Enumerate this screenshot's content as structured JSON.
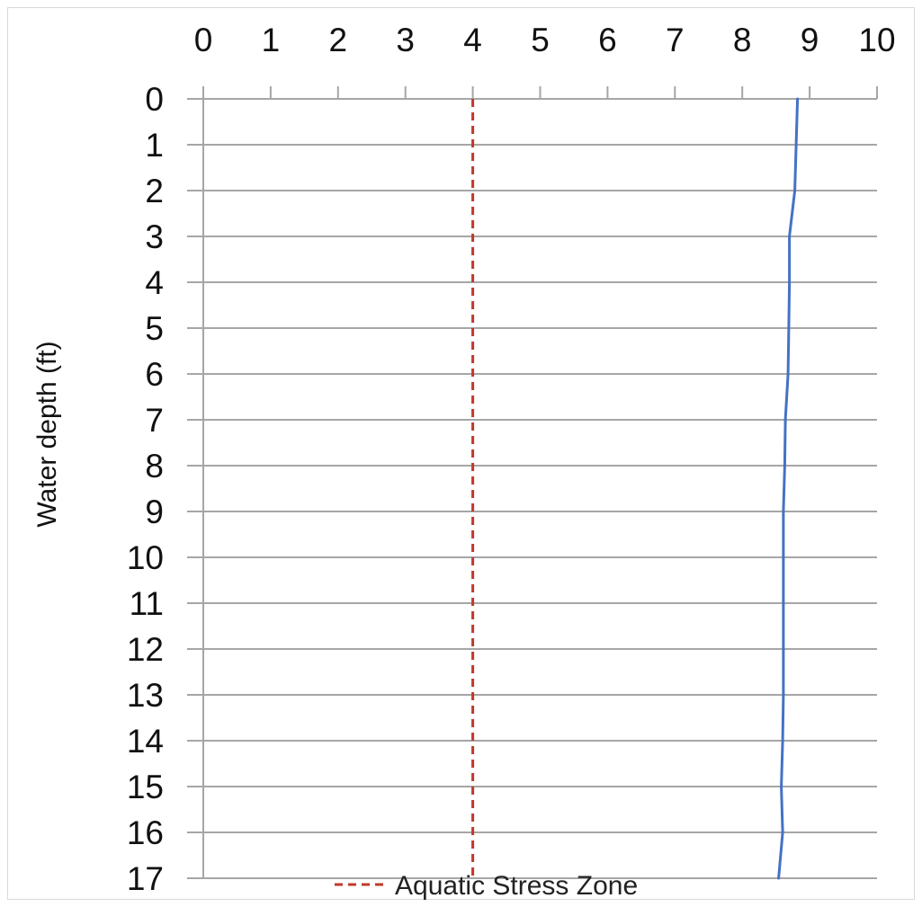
{
  "chart_data": {
    "type": "line",
    "ylabel": "Water depth (ft)",
    "xlabel": "",
    "x_axis_position": "top",
    "y_axis_inverted": true,
    "xlim": [
      0,
      10
    ],
    "ylim": [
      0,
      17
    ],
    "x_ticks": [
      0,
      1,
      2,
      3,
      4,
      5,
      6,
      7,
      8,
      9,
      10
    ],
    "y_ticks": [
      0,
      1,
      2,
      3,
      4,
      5,
      6,
      7,
      8,
      9,
      10,
      11,
      12,
      13,
      14,
      15,
      16,
      17
    ],
    "grid": "horizontal",
    "legend_position": "bottom",
    "series": [
      {
        "name": "",
        "style": "solid",
        "color": "#4472C4",
        "points": [
          {
            "x": 8.82,
            "depth": 0
          },
          {
            "x": 8.8,
            "depth": 1
          },
          {
            "x": 8.78,
            "depth": 2
          },
          {
            "x": 8.7,
            "depth": 3
          },
          {
            "x": 8.7,
            "depth": 4
          },
          {
            "x": 8.69,
            "depth": 5
          },
          {
            "x": 8.68,
            "depth": 6
          },
          {
            "x": 8.64,
            "depth": 7
          },
          {
            "x": 8.63,
            "depth": 8
          },
          {
            "x": 8.61,
            "depth": 9
          },
          {
            "x": 8.61,
            "depth": 10
          },
          {
            "x": 8.61,
            "depth": 11
          },
          {
            "x": 8.61,
            "depth": 12
          },
          {
            "x": 8.61,
            "depth": 13
          },
          {
            "x": 8.6,
            "depth": 14
          },
          {
            "x": 8.58,
            "depth": 15
          },
          {
            "x": 8.6,
            "depth": 16
          },
          {
            "x": 8.54,
            "depth": 17
          }
        ]
      },
      {
        "name": "Aquatic Stress Zone",
        "style": "dashed",
        "color": "#C0392B",
        "points": [
          {
            "x": 4,
            "depth": 0
          },
          {
            "x": 4,
            "depth": 17
          }
        ]
      }
    ]
  }
}
